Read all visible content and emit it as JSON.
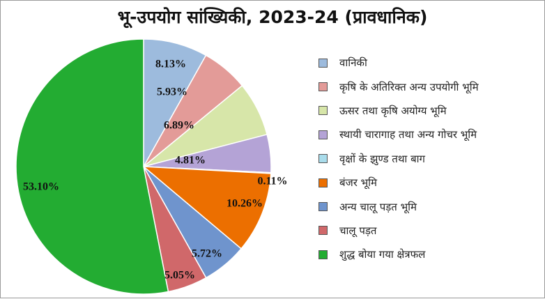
{
  "chart_data": {
    "type": "pie",
    "title": "भू-उपयोग सांख्यिकी, 2023-24 (प्रावधानिक)",
    "slices": [
      {
        "label": "वानिकी",
        "value": 8.13,
        "display": "8.13%",
        "color": "#9dbbdd"
      },
      {
        "label": "कृषि के अतिरिक्त अन्य उपयोगी भूमि",
        "value": 5.93,
        "display": "5.93%",
        "color": "#e39b98"
      },
      {
        "label": "ऊसर तथा कृषि अयोग्य भूमि",
        "value": 6.89,
        "display": "6.89%",
        "color": "#d7e6a9"
      },
      {
        "label": "स्थायी चारागाह तथा अन्य गोचर भूमि",
        "value": 4.81,
        "display": "4.81%",
        "color": "#b4a3d6"
      },
      {
        "label": "वृक्षों के झुण्ड तथा बाग",
        "value": 0.11,
        "display": "0.11%",
        "color": "#a9dceb"
      },
      {
        "label": "बंजर भूमि",
        "value": 10.26,
        "display": "10.26%",
        "color": "#ec6f00"
      },
      {
        "label": "अन्य चालू पड़त भूमि",
        "value": 5.72,
        "display": "5.72%",
        "color": "#6f94cd"
      },
      {
        "label": "चालू पड़त",
        "value": 5.05,
        "display": "5.05%",
        "color": "#d0686a"
      },
      {
        "label": "शुद्ध बोया गया क्षेत्रफल",
        "value": 53.1,
        "display": "53.10%",
        "color": "#23ac32"
      }
    ],
    "legend_position": "right"
  }
}
